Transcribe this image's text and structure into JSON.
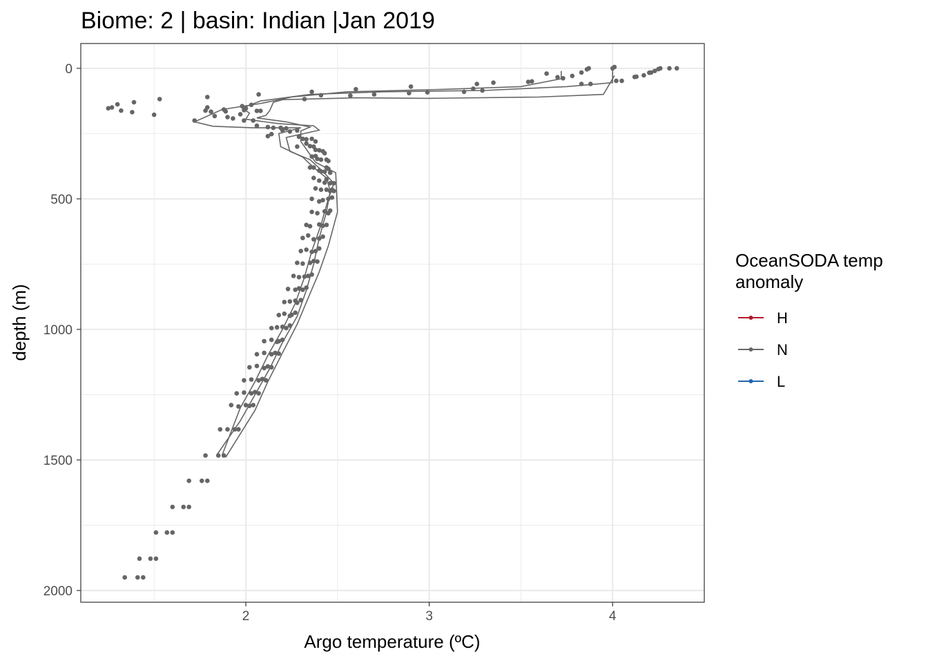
{
  "chart_data": {
    "type": "scatter",
    "title": "Biome: 2 | basin: Indian  |Jan 2019",
    "xlabel": "Argo temperature (ºC)",
    "ylabel": "depth (m)",
    "xlim": [
      1.1,
      4.5
    ],
    "ylim": [
      2045,
      -95
    ],
    "y_reversed": true,
    "x_ticks": [
      2,
      3,
      4
    ],
    "x_tick_labels": [
      "2",
      "3",
      "4"
    ],
    "y_ticks": [
      0,
      500,
      1000,
      1500,
      2000
    ],
    "y_tick_labels": [
      "0",
      "500",
      "1000",
      "1500",
      "2000"
    ],
    "grid": true,
    "legend": {
      "title_lines": [
        "OceanSODA temp",
        "anomaly"
      ],
      "placement": "right",
      "entries": [
        {
          "label": "H",
          "color": "#b2182b"
        },
        {
          "label": "N",
          "color": "#666666"
        },
        {
          "label": "L",
          "color": "#2166ac"
        }
      ]
    },
    "series_color": "#666666",
    "series": [
      {
        "name": "N",
        "kind": "points",
        "points": [
          [
            4.35,
            0
          ],
          [
            4.31,
            0
          ],
          [
            4.26,
            0
          ],
          [
            4.25,
            3
          ],
          [
            4.23,
            10
          ],
          [
            4.21,
            16
          ],
          [
            4.2,
            17
          ],
          [
            4.17,
            27
          ],
          [
            4.13,
            32
          ],
          [
            4.12,
            33
          ],
          [
            4.05,
            48
          ],
          [
            4.02,
            48
          ],
          [
            4.01,
            -5
          ],
          [
            4.0,
            0
          ],
          [
            3.87,
            0
          ],
          [
            3.86,
            4
          ],
          [
            3.83,
            16
          ],
          [
            3.78,
            29
          ],
          [
            3.73,
            38
          ],
          [
            3.7,
            34
          ],
          [
            3.64,
            20
          ],
          [
            3.56,
            50
          ],
          [
            3.54,
            52
          ],
          [
            3.35,
            55
          ],
          [
            3.26,
            60
          ],
          [
            3.24,
            78
          ],
          [
            3.88,
            60
          ],
          [
            3.83,
            60
          ],
          [
            3.29,
            85
          ],
          [
            3.19,
            90
          ],
          [
            2.99,
            92
          ],
          [
            2.9,
            70
          ],
          [
            2.89,
            95
          ],
          [
            2.7,
            100
          ],
          [
            2.6,
            80
          ],
          [
            2.57,
            105
          ],
          [
            2.41,
            103
          ],
          [
            2.36,
            90
          ],
          [
            2.32,
            118
          ],
          [
            2.07,
            100
          ],
          [
            1.79,
            110
          ],
          [
            1.27,
            150
          ],
          [
            1.25,
            153
          ],
          [
            1.32,
            162
          ],
          [
            1.3,
            138
          ],
          [
            1.39,
            130
          ],
          [
            1.38,
            168
          ],
          [
            1.53,
            118
          ],
          [
            1.5,
            178
          ],
          [
            1.79,
            150
          ],
          [
            1.81,
            166
          ],
          [
            1.83,
            183
          ],
          [
            1.78,
            162
          ],
          [
            1.97,
            176
          ],
          [
            1.98,
            145
          ],
          [
            1.99,
            160
          ],
          [
            2.0,
            154
          ],
          [
            2.03,
            140
          ],
          [
            2.06,
            163
          ],
          [
            2.08,
            163
          ],
          [
            1.72,
            200
          ],
          [
            1.88,
            158
          ],
          [
            1.89,
            165
          ],
          [
            1.9,
            187
          ],
          [
            1.93,
            192
          ],
          [
            1.99,
            200
          ],
          [
            2.04,
            200
          ],
          [
            2.06,
            220
          ],
          [
            2.12,
            225
          ],
          [
            2.15,
            228
          ],
          [
            2.19,
            228
          ],
          [
            2.22,
            230
          ],
          [
            2.12,
            260
          ],
          [
            2.14,
            252
          ],
          [
            2.2,
            237
          ],
          [
            2.24,
            242
          ],
          [
            2.28,
            238
          ],
          [
            2.29,
            262
          ],
          [
            2.31,
            270
          ],
          [
            2.33,
            272
          ],
          [
            2.36,
            270
          ],
          [
            2.38,
            280
          ],
          [
            2.28,
            300
          ],
          [
            2.33,
            288
          ],
          [
            2.35,
            298
          ],
          [
            2.37,
            300
          ],
          [
            2.38,
            312
          ],
          [
            2.4,
            314
          ],
          [
            2.42,
            318
          ],
          [
            2.43,
            325
          ],
          [
            2.36,
            338
          ],
          [
            2.38,
            336
          ],
          [
            2.39,
            347
          ],
          [
            2.41,
            350
          ],
          [
            2.44,
            350
          ],
          [
            2.45,
            355
          ],
          [
            2.35,
            380
          ],
          [
            2.37,
            380
          ],
          [
            2.4,
            392
          ],
          [
            2.41,
            395
          ],
          [
            2.43,
            396
          ],
          [
            2.44,
            380
          ],
          [
            2.45,
            385
          ],
          [
            2.46,
            400
          ],
          [
            2.37,
            420
          ],
          [
            2.4,
            430
          ],
          [
            2.43,
            438
          ],
          [
            2.44,
            425
          ],
          [
            2.46,
            440
          ],
          [
            2.48,
            440
          ],
          [
            2.38,
            460
          ],
          [
            2.41,
            465
          ],
          [
            2.44,
            465
          ],
          [
            2.46,
            470
          ],
          [
            2.47,
            465
          ],
          [
            2.48,
            470
          ],
          [
            2.36,
            500
          ],
          [
            2.4,
            510
          ],
          [
            2.42,
            505
          ],
          [
            2.45,
            500
          ],
          [
            2.47,
            495
          ],
          [
            2.36,
            550
          ],
          [
            2.39,
            555
          ],
          [
            2.43,
            548
          ],
          [
            2.45,
            555
          ],
          [
            2.46,
            545
          ],
          [
            2.33,
            600
          ],
          [
            2.35,
            605
          ],
          [
            2.4,
            598
          ],
          [
            2.42,
            603
          ],
          [
            2.44,
            600
          ],
          [
            2.31,
            650
          ],
          [
            2.34,
            640
          ],
          [
            2.37,
            655
          ],
          [
            2.4,
            652
          ],
          [
            2.42,
            645
          ],
          [
            2.3,
            700
          ],
          [
            2.33,
            695
          ],
          [
            2.36,
            703
          ],
          [
            2.38,
            700
          ],
          [
            2.4,
            690
          ],
          [
            2.28,
            745
          ],
          [
            2.31,
            748
          ],
          [
            2.35,
            745
          ],
          [
            2.37,
            738
          ],
          [
            2.39,
            740
          ],
          [
            2.26,
            795
          ],
          [
            2.29,
            800
          ],
          [
            2.32,
            798
          ],
          [
            2.34,
            795
          ],
          [
            2.36,
            790
          ],
          [
            2.23,
            845
          ],
          [
            2.27,
            848
          ],
          [
            2.29,
            843
          ],
          [
            2.31,
            848
          ],
          [
            2.33,
            840
          ],
          [
            2.21,
            895
          ],
          [
            2.24,
            893
          ],
          [
            2.27,
            890
          ],
          [
            2.28,
            898
          ],
          [
            2.3,
            888
          ],
          [
            2.18,
            945
          ],
          [
            2.21,
            940
          ],
          [
            2.24,
            948
          ],
          [
            2.25,
            944
          ],
          [
            2.27,
            936
          ],
          [
            2.14,
            995
          ],
          [
            2.17,
            992
          ],
          [
            2.2,
            990
          ],
          [
            2.22,
            995
          ],
          [
            2.24,
            985
          ],
          [
            2.1,
            1045
          ],
          [
            2.14,
            1040
          ],
          [
            2.17,
            1048
          ],
          [
            2.18,
            1045
          ],
          [
            2.2,
            1040
          ],
          [
            2.06,
            1095
          ],
          [
            2.1,
            1090
          ],
          [
            2.14,
            1095
          ],
          [
            2.16,
            1090
          ],
          [
            2.18,
            1093
          ],
          [
            2.02,
            1145
          ],
          [
            2.06,
            1140
          ],
          [
            2.1,
            1148
          ],
          [
            2.12,
            1142
          ],
          [
            2.14,
            1145
          ],
          [
            1.99,
            1195
          ],
          [
            2.03,
            1192
          ],
          [
            2.07,
            1195
          ],
          [
            2.09,
            1190
          ],
          [
            2.11,
            1195
          ],
          [
            1.95,
            1245
          ],
          [
            1.99,
            1242
          ],
          [
            2.03,
            1245
          ],
          [
            2.05,
            1240
          ],
          [
            2.07,
            1245
          ],
          [
            1.92,
            1290
          ],
          [
            1.96,
            1295
          ],
          [
            2.0,
            1290
          ],
          [
            2.02,
            1293
          ],
          [
            2.04,
            1290
          ],
          [
            1.86,
            1383
          ],
          [
            1.9,
            1383
          ],
          [
            1.94,
            1383
          ],
          [
            1.96,
            1383
          ],
          [
            1.78,
            1483
          ],
          [
            1.85,
            1483
          ],
          [
            1.88,
            1483
          ],
          [
            1.69,
            1580
          ],
          [
            1.76,
            1580
          ],
          [
            1.79,
            1580
          ],
          [
            1.6,
            1680
          ],
          [
            1.66,
            1680
          ],
          [
            1.69,
            1680
          ],
          [
            1.51,
            1778
          ],
          [
            1.57,
            1778
          ],
          [
            1.6,
            1778
          ],
          [
            1.42,
            1878
          ],
          [
            1.48,
            1878
          ],
          [
            1.51,
            1878
          ],
          [
            1.34,
            1950
          ],
          [
            1.41,
            1950
          ],
          [
            1.44,
            1950
          ]
        ]
      },
      {
        "name": "N",
        "kind": "line",
        "points": [
          [
            3.72,
            10
          ],
          [
            3.72,
            40
          ],
          [
            3.5,
            70
          ],
          [
            3.1,
            80
          ],
          [
            2.55,
            90
          ],
          [
            2.25,
            110
          ],
          [
            2.08,
            135
          ],
          [
            1.87,
            158
          ],
          [
            1.72,
            205
          ],
          [
            1.82,
            222
          ],
          [
            2.04,
            228
          ],
          [
            2.3,
            228
          ],
          [
            2.18,
            250
          ],
          [
            2.19,
            300
          ],
          [
            2.31,
            340
          ],
          [
            2.37,
            380
          ],
          [
            2.44,
            420
          ],
          [
            2.46,
            470
          ],
          [
            2.44,
            550
          ],
          [
            2.4,
            650
          ],
          [
            2.37,
            750
          ],
          [
            2.33,
            850
          ],
          [
            2.28,
            950
          ],
          [
            2.2,
            1050
          ],
          [
            2.13,
            1150
          ],
          [
            2.05,
            1250
          ],
          [
            1.97,
            1350
          ],
          [
            1.84,
            1483
          ]
        ]
      },
      {
        "name": "N",
        "kind": "line",
        "points": [
          [
            4.0,
            -5
          ],
          [
            4.0,
            55
          ],
          [
            3.75,
            70
          ],
          [
            3.3,
            85
          ],
          [
            2.75,
            90
          ],
          [
            2.35,
            100
          ],
          [
            2.08,
            125
          ],
          [
            1.98,
            152
          ],
          [
            2.02,
            172
          ],
          [
            2.0,
            195
          ],
          [
            2.18,
            212
          ],
          [
            2.37,
            220
          ],
          [
            2.4,
            237
          ],
          [
            2.22,
            265
          ],
          [
            2.24,
            318
          ],
          [
            2.35,
            350
          ],
          [
            2.42,
            395
          ],
          [
            2.48,
            440
          ],
          [
            2.45,
            500
          ],
          [
            2.41,
            600
          ],
          [
            2.36,
            700
          ],
          [
            2.32,
            800
          ],
          [
            2.27,
            900
          ],
          [
            2.2,
            1000
          ],
          [
            2.12,
            1100
          ],
          [
            2.05,
            1200
          ],
          [
            1.97,
            1300
          ],
          [
            1.87,
            1483
          ]
        ]
      },
      {
        "name": "N",
        "kind": "line",
        "points": [
          [
            4.01,
            28
          ],
          [
            3.95,
            100
          ],
          [
            3.6,
            110
          ],
          [
            3.0,
            115
          ],
          [
            2.6,
            113
          ],
          [
            2.2,
            120
          ],
          [
            2.15,
            130
          ],
          [
            2.13,
            162
          ],
          [
            2.11,
            180
          ],
          [
            2.06,
            190
          ],
          [
            2.22,
            205
          ],
          [
            2.35,
            225
          ],
          [
            2.3,
            240
          ],
          [
            2.3,
            280
          ],
          [
            2.34,
            320
          ],
          [
            2.38,
            360
          ],
          [
            2.49,
            400
          ],
          [
            2.5,
            550
          ],
          [
            2.45,
            680
          ],
          [
            2.4,
            780
          ],
          [
            2.34,
            880
          ],
          [
            2.28,
            980
          ],
          [
            2.2,
            1090
          ],
          [
            2.12,
            1200
          ],
          [
            2.05,
            1310
          ],
          [
            1.89,
            1490
          ]
        ]
      }
    ]
  }
}
